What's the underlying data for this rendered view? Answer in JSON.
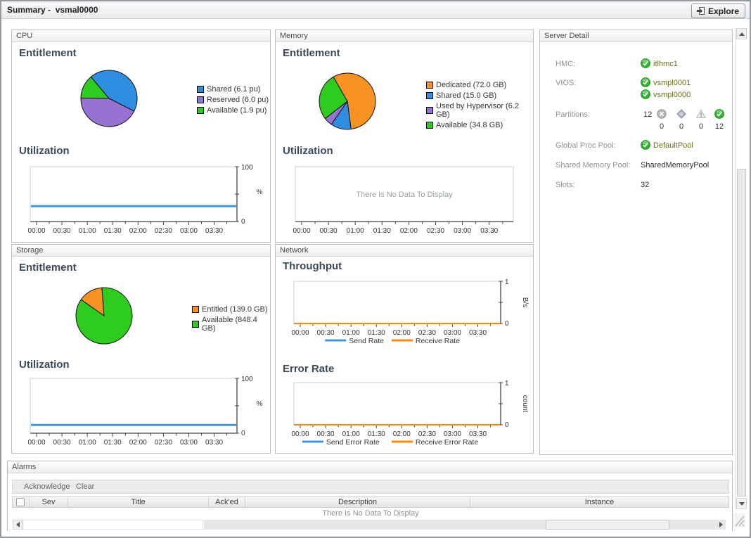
{
  "window": {
    "title": "Summary -  vsmal0000",
    "explore_label": "Explore"
  },
  "panels": {
    "cpu": {
      "title": "CPU"
    },
    "memory": {
      "title": "Memory"
    },
    "storage": {
      "title": "Storage"
    },
    "network": {
      "title": "Network"
    },
    "server_detail": {
      "title": "Server Detail"
    },
    "alarms": {
      "title": "Alarms"
    }
  },
  "server_detail": {
    "hmc": {
      "label": "HMC:",
      "value": "itlhmc1"
    },
    "vios": {
      "label": "VIOS:",
      "value1": "vsmpl0001",
      "value2": "vsmpl0000"
    },
    "partitions": {
      "label": "Partitions:",
      "total": "12",
      "fatal": "0",
      "critical": "0",
      "warning": "0",
      "normal": "12"
    },
    "global_proc_pool": {
      "label": "Global Proc Pool:",
      "value": "DefaultPool"
    },
    "shared_memory_pool": {
      "label": "Shared Memory Pool:",
      "value": "SharedMemoryPool"
    },
    "slots": {
      "label": "Slots:",
      "value": "32"
    }
  },
  "alarms": {
    "toolbar": [
      "Acknowledge",
      "Clear"
    ],
    "columns": [
      "Sev",
      "Title",
      "Ack'ed",
      "Description",
      "Instance"
    ],
    "empty_message": "There Is No Data To Display"
  },
  "colors": {
    "blue": "#2f8ee0",
    "purple": "#9673d2",
    "green": "#2ecc1f",
    "orange": "#f89222",
    "line_blue": "#3e97dd",
    "line_orange": "#ff8a00",
    "status_green": "#2eb52e",
    "link": "#6e6e19"
  },
  "chart_data": [
    {
      "id": "cpu_entitlement",
      "type": "pie",
      "title": "Entitlement",
      "start_angle": -40,
      "legend_position": "right",
      "slices": [
        {
          "label": "Shared (6.1 pu)",
          "value": 6.1,
          "color": "#2f8ee0"
        },
        {
          "label": "Reserved (6.0 pu)",
          "value": 6.0,
          "color": "#9673d2"
        },
        {
          "label": "Available (1.9 pu)",
          "value": 1.9,
          "color": "#2ecc1f"
        }
      ]
    },
    {
      "id": "cpu_utilization",
      "type": "line",
      "title": "Utilization",
      "ylim": [
        0,
        100
      ],
      "unit": "%",
      "x_ticks": [
        "00:00",
        "00:30",
        "01:00",
        "01:30",
        "02:00",
        "02:30",
        "03:00",
        "03:30"
      ],
      "series": [
        {
          "name": "Utilization",
          "color": "#3e97dd",
          "constant": 28
        }
      ]
    },
    {
      "id": "memory_entitlement",
      "type": "pie",
      "title": "Entitlement",
      "start_angle": -30,
      "legend_position": "right",
      "slices": [
        {
          "label": "Dedicated (72.0 GB)",
          "value": 72.0,
          "color": "#f89222"
        },
        {
          "label": "Shared (15.0 GB)",
          "value": 15.0,
          "color": "#2f8ee0"
        },
        {
          "label": "Used by Hypervisor (6.2 GB)",
          "value": 6.2,
          "color": "#9673d2"
        },
        {
          "label": "Available (34.8 GB)",
          "value": 34.8,
          "color": "#2ecc1f"
        }
      ]
    },
    {
      "id": "memory_utilization",
      "type": "line",
      "title": "Utilization",
      "ylim": [
        0,
        100
      ],
      "x_ticks": [
        "00:00",
        "00:30",
        "01:00",
        "01:30",
        "02:00",
        "02:30",
        "03:00",
        "03:30"
      ],
      "series": [],
      "no_data_message": "There Is No Data To Display"
    },
    {
      "id": "storage_entitlement",
      "type": "pie",
      "title": "Entitlement",
      "start_angle": -55,
      "legend_position": "right",
      "slices": [
        {
          "label": "Entitled (139.0 GB)",
          "value": 139.0,
          "color": "#f89222"
        },
        {
          "label": "Available (848.4 GB)",
          "value": 848.4,
          "color": "#2ecc1f"
        }
      ]
    },
    {
      "id": "storage_utilization",
      "type": "line",
      "title": "Utilization",
      "ylim": [
        0,
        100
      ],
      "unit": "%",
      "x_ticks": [
        "00:00",
        "00:30",
        "01:00",
        "01:30",
        "02:00",
        "02:30",
        "03:00",
        "03:30"
      ],
      "series": [
        {
          "name": "Utilization",
          "color": "#3e97dd",
          "constant": 15
        }
      ]
    },
    {
      "id": "network_throughput",
      "type": "line",
      "title": "Throughput",
      "ylim": [
        0,
        1
      ],
      "unit": "B/s",
      "legend_position": "bottom",
      "x_ticks": [
        "00:00",
        "00:30",
        "01:00",
        "01:30",
        "02:00",
        "02:30",
        "03:00",
        "03:30"
      ],
      "series": [
        {
          "name": "Send Rate",
          "color": "#3e97dd",
          "constant": 0
        },
        {
          "name": "Receive Rate",
          "color": "#ff8a00",
          "constant": 0
        }
      ]
    },
    {
      "id": "network_error_rate",
      "type": "line",
      "title": "Error Rate",
      "ylim": [
        0,
        1
      ],
      "unit": "count",
      "legend_position": "bottom",
      "x_ticks": [
        "00:00",
        "00:30",
        "01:00",
        "01:30",
        "02:00",
        "02:30",
        "03:00",
        "03:30"
      ],
      "series": [
        {
          "name": "Send Error Rate",
          "color": "#3e97dd",
          "constant": 0
        },
        {
          "name": "Receive Error Rate",
          "color": "#ff8a00",
          "constant": 0
        }
      ]
    }
  ]
}
